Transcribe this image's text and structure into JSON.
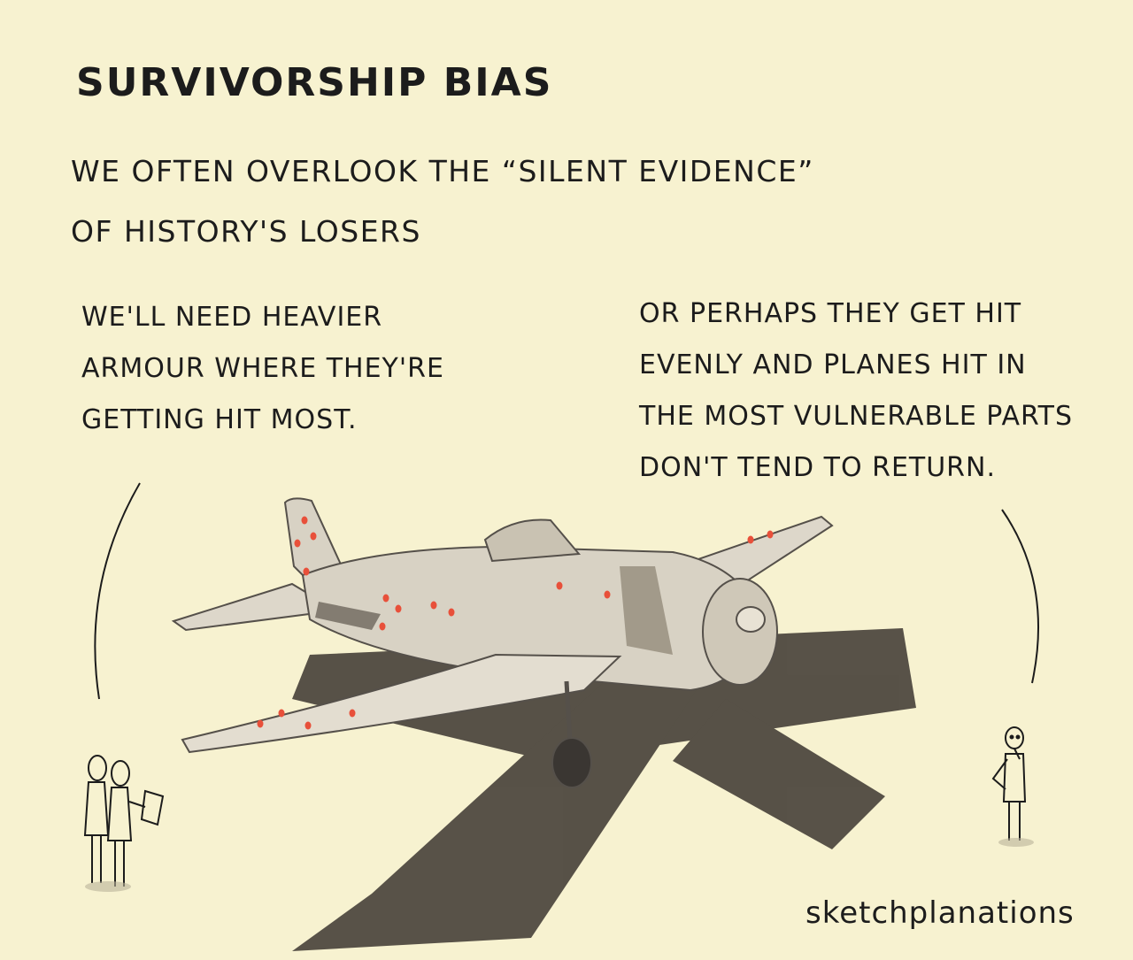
{
  "title": "SURVIVORSHIP BIAS",
  "subtitle_lines": [
    "WE OFTEN OVERLOOK THE “SILENT EVIDENCE”",
    "OF HISTORY'S LOSERS"
  ],
  "speech_left_lines": [
    "WE'LL NEED HEAVIER",
    "ARMOUR WHERE THEY'RE",
    "GETTING HIT MOST."
  ],
  "speech_right_lines": [
    "OR PERHAPS THEY GET HIT",
    "EVENLY AND PLANES HIT IN",
    "THE MOST VULNERABLE PARTS",
    "DON'T TEND TO RETURN."
  ],
  "signature": "sketchplanations",
  "colors": {
    "background": "#f7f2d0",
    "ink": "#1c1c1c",
    "bullet_holes": "#e8503a",
    "plane_body": "#d8d2c4",
    "shadow": "#4a443c"
  }
}
